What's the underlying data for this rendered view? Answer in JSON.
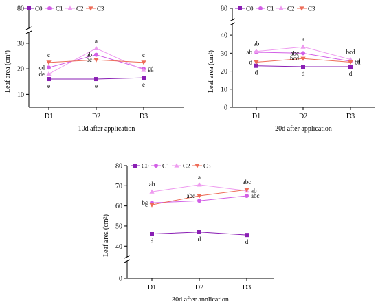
{
  "chart_data": [
    {
      "type": "line",
      "title": "",
      "xlabel": "10d after application",
      "ylabel": "Leaf area (cm²)",
      "categories": [
        "D1",
        "D2",
        "D3"
      ],
      "yticks": [
        10,
        20,
        30,
        80
      ],
      "ylim": [
        5,
        80
      ],
      "axis_break": [
        34,
        78
      ],
      "legend_position": "top-left",
      "series": [
        {
          "name": "C0",
          "values": [
            16.0,
            16.0,
            16.5
          ],
          "labels": [
            "e",
            "e",
            "e"
          ]
        },
        {
          "name": "C1",
          "values": [
            20.5,
            25.5,
            20.0
          ],
          "labels": [
            "cd",
            "ab",
            "cd"
          ]
        },
        {
          "name": "C2",
          "values": [
            18.0,
            28.0,
            19.5
          ],
          "labels": [
            "de",
            "a",
            "cd"
          ]
        },
        {
          "name": "C3",
          "values": [
            22.5,
            23.5,
            22.5
          ],
          "labels": [
            "c",
            "bc",
            "c"
          ]
        }
      ]
    },
    {
      "type": "line",
      "title": "",
      "xlabel": "20d after application",
      "ylabel": "Leaf area (cm²)",
      "categories": [
        "D1",
        "D2",
        "D3"
      ],
      "yticks": [
        0,
        10,
        20,
        30,
        40,
        80
      ],
      "ylim": [
        0,
        80
      ],
      "axis_break": [
        45,
        78
      ],
      "legend_position": "top-left",
      "series": [
        {
          "name": "C0",
          "values": [
            23.0,
            22.5,
            22.5
          ],
          "labels": [
            "d",
            "d",
            "d"
          ]
        },
        {
          "name": "C1",
          "values": [
            30.5,
            30.0,
            25.5
          ],
          "labels": [
            "ab",
            "abc",
            "cd"
          ]
        },
        {
          "name": "C2",
          "values": [
            31.0,
            33.5,
            26.5
          ],
          "labels": [
            "ab",
            "a",
            "bcd"
          ]
        },
        {
          "name": "C3",
          "values": [
            25.0,
            27.0,
            25.0
          ],
          "labels": [
            "d",
            "bcd",
            "cd"
          ]
        }
      ]
    },
    {
      "type": "line",
      "title": "",
      "xlabel": "30d after application",
      "ylabel": "Leaf area (cm²)",
      "categories": [
        "D1",
        "D2",
        "D3"
      ],
      "yticks": [
        0,
        40,
        50,
        60,
        70,
        80
      ],
      "ylim": [
        0,
        80
      ],
      "axis_break": [
        7,
        36
      ],
      "legend_position": "top-left",
      "series": [
        {
          "name": "C0",
          "values": [
            46.0,
            47.0,
            45.5
          ],
          "labels": [
            "d",
            "d",
            "d"
          ]
        },
        {
          "name": "C1",
          "values": [
            61.5,
            62.5,
            65.0
          ],
          "labels": [
            "bc",
            "",
            "abc"
          ]
        },
        {
          "name": "C2",
          "values": [
            67.0,
            70.5,
            67.5
          ],
          "labels": [
            "ab",
            "a",
            "ab"
          ]
        },
        {
          "name": "C3",
          "values": [
            60.5,
            65.0,
            68.0
          ],
          "labels": [
            "c",
            "abc",
            "abc"
          ]
        }
      ]
    }
  ],
  "series_style": {
    "C0": {
      "color": "#8a1fb4",
      "marker": "square"
    },
    "C1": {
      "color": "#d25ee6",
      "marker": "circle"
    },
    "C2": {
      "color": "#ee9aef",
      "marker": "triangle-up"
    },
    "C3": {
      "color": "#ee6c58",
      "marker": "triangle-down"
    }
  }
}
